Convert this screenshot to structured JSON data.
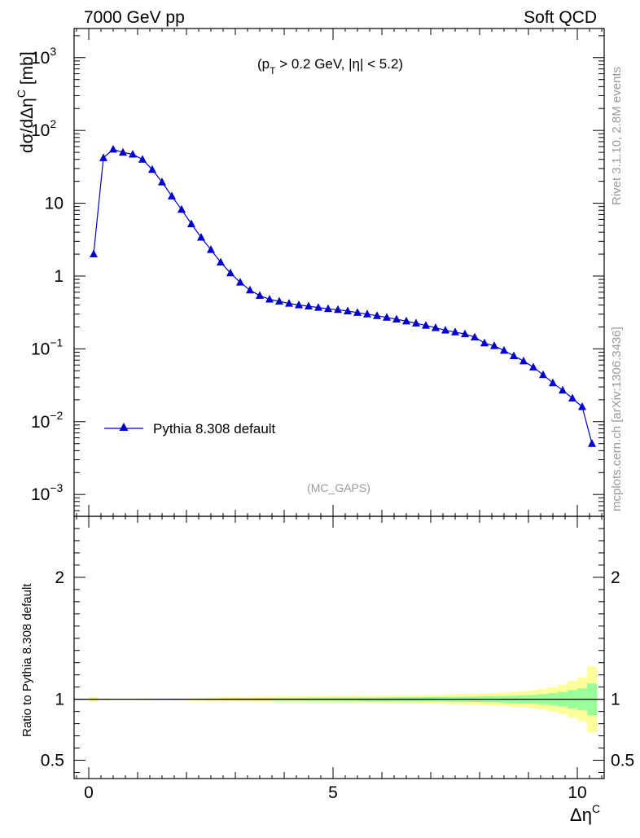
{
  "header": {
    "left": "7000 GeV pp",
    "right": "Soft QCD",
    "cut_text": "(p",
    "cut_sub": "T",
    "cut_rest": " > 0.2 GeV, |η| < 5.2)",
    "analysis": "(MC_GAPS)"
  },
  "side_labels": {
    "rivet": "Rivet 3.1.10,  2.8M events",
    "mcplots": "mcplots.cern.ch [arXiv:1306.3436]"
  },
  "colors": {
    "line": "#0000cc",
    "band_outer": "#ffff99",
    "band_inner": "#99ff99",
    "axis": "#000000",
    "grey_text": "#999999"
  },
  "chart_data": [
    {
      "type": "line",
      "scale": "log",
      "ylabel": "dσ/dΔη",
      "ylabel_sup": "C",
      "ylabel_unit": " [mb]",
      "xlim": [
        -0.3,
        10.55
      ],
      "ylim_log10": [
        -3.3,
        3.4
      ],
      "yticks": [
        {
          "value": 1000,
          "label": "10",
          "sup": "3"
        },
        {
          "value": 100,
          "label": "10",
          "sup": "2"
        },
        {
          "value": 10,
          "label": "10",
          "sup": ""
        },
        {
          "value": 1,
          "label": "1",
          "sup": ""
        },
        {
          "value": 0.1,
          "label": "10",
          "sup": "−1"
        },
        {
          "value": 0.01,
          "label": "10",
          "sup": "−2"
        },
        {
          "value": 0.001,
          "label": "10",
          "sup": "−3"
        }
      ],
      "legend": "top-left (lower half)",
      "series": [
        {
          "name": "Pythia 8.308 default",
          "x": [
            0.1,
            0.3,
            0.5,
            0.7,
            0.9,
            1.1,
            1.3,
            1.5,
            1.7,
            1.9,
            2.1,
            2.3,
            2.5,
            2.7,
            2.9,
            3.1,
            3.3,
            3.5,
            3.7,
            3.9,
            4.1,
            4.3,
            4.5,
            4.7,
            4.9,
            5.1,
            5.3,
            5.5,
            5.7,
            5.9,
            6.1,
            6.3,
            6.5,
            6.7,
            6.9,
            7.1,
            7.3,
            7.5,
            7.7,
            7.9,
            8.1,
            8.3,
            8.5,
            8.7,
            8.9,
            9.1,
            9.3,
            9.5,
            9.7,
            9.9,
            10.1,
            10.3
          ],
          "values": [
            2.0,
            42,
            55,
            50,
            47,
            40,
            29,
            19.5,
            12.5,
            8.2,
            5.2,
            3.4,
            2.3,
            1.55,
            1.1,
            0.82,
            0.64,
            0.54,
            0.48,
            0.45,
            0.42,
            0.4,
            0.385,
            0.37,
            0.355,
            0.345,
            0.33,
            0.315,
            0.3,
            0.285,
            0.27,
            0.255,
            0.24,
            0.225,
            0.21,
            0.195,
            0.18,
            0.17,
            0.16,
            0.145,
            0.12,
            0.11,
            0.095,
            0.08,
            0.068,
            0.056,
            0.044,
            0.034,
            0.027,
            0.021,
            0.016,
            0.005
          ]
        }
      ]
    },
    {
      "type": "area",
      "xlabel": "Δη",
      "xlabel_sup": "C",
      "ylabel": "Ratio to Pythia 8.308 default",
      "xlim": [
        -0.3,
        10.55
      ],
      "ylim": [
        0.35,
        2.5
      ],
      "xticks": [
        0,
        5,
        10
      ],
      "yticks": [
        0.5,
        1,
        2
      ],
      "bin_width": 0.2,
      "x": [
        0.1,
        0.3,
        0.5,
        0.7,
        0.9,
        1.1,
        1.3,
        1.5,
        1.7,
        1.9,
        2.1,
        2.3,
        2.5,
        2.7,
        2.9,
        3.1,
        3.3,
        3.5,
        3.7,
        3.9,
        4.1,
        4.3,
        4.5,
        4.7,
        4.9,
        5.1,
        5.3,
        5.5,
        5.7,
        5.9,
        6.1,
        6.3,
        6.5,
        6.7,
        6.9,
        7.1,
        7.3,
        7.5,
        7.7,
        7.9,
        8.1,
        8.3,
        8.5,
        8.7,
        8.9,
        9.1,
        9.3,
        9.5,
        9.7,
        9.9,
        10.1,
        10.3
      ],
      "band_inner": [
        0.005,
        0.003,
        0.002,
        0.002,
        0.002,
        0.003,
        0.003,
        0.004,
        0.004,
        0.005,
        0.005,
        0.006,
        0.007,
        0.008,
        0.009,
        0.01,
        0.01,
        0.011,
        0.011,
        0.012,
        0.012,
        0.012,
        0.013,
        0.013,
        0.013,
        0.014,
        0.014,
        0.014,
        0.015,
        0.015,
        0.016,
        0.016,
        0.017,
        0.017,
        0.018,
        0.018,
        0.019,
        0.02,
        0.021,
        0.022,
        0.024,
        0.025,
        0.027,
        0.03,
        0.033,
        0.037,
        0.042,
        0.05,
        0.06,
        0.075,
        0.09,
        0.13
      ],
      "band_outer": [
        0.02,
        0.008,
        0.006,
        0.006,
        0.006,
        0.007,
        0.008,
        0.009,
        0.01,
        0.011,
        0.012,
        0.013,
        0.015,
        0.017,
        0.019,
        0.02,
        0.021,
        0.022,
        0.022,
        0.023,
        0.024,
        0.024,
        0.025,
        0.026,
        0.027,
        0.027,
        0.028,
        0.029,
        0.03,
        0.031,
        0.032,
        0.033,
        0.034,
        0.035,
        0.036,
        0.037,
        0.039,
        0.041,
        0.043,
        0.045,
        0.048,
        0.051,
        0.055,
        0.06,
        0.066,
        0.074,
        0.085,
        0.1,
        0.12,
        0.15,
        0.18,
        0.27
      ]
    }
  ]
}
